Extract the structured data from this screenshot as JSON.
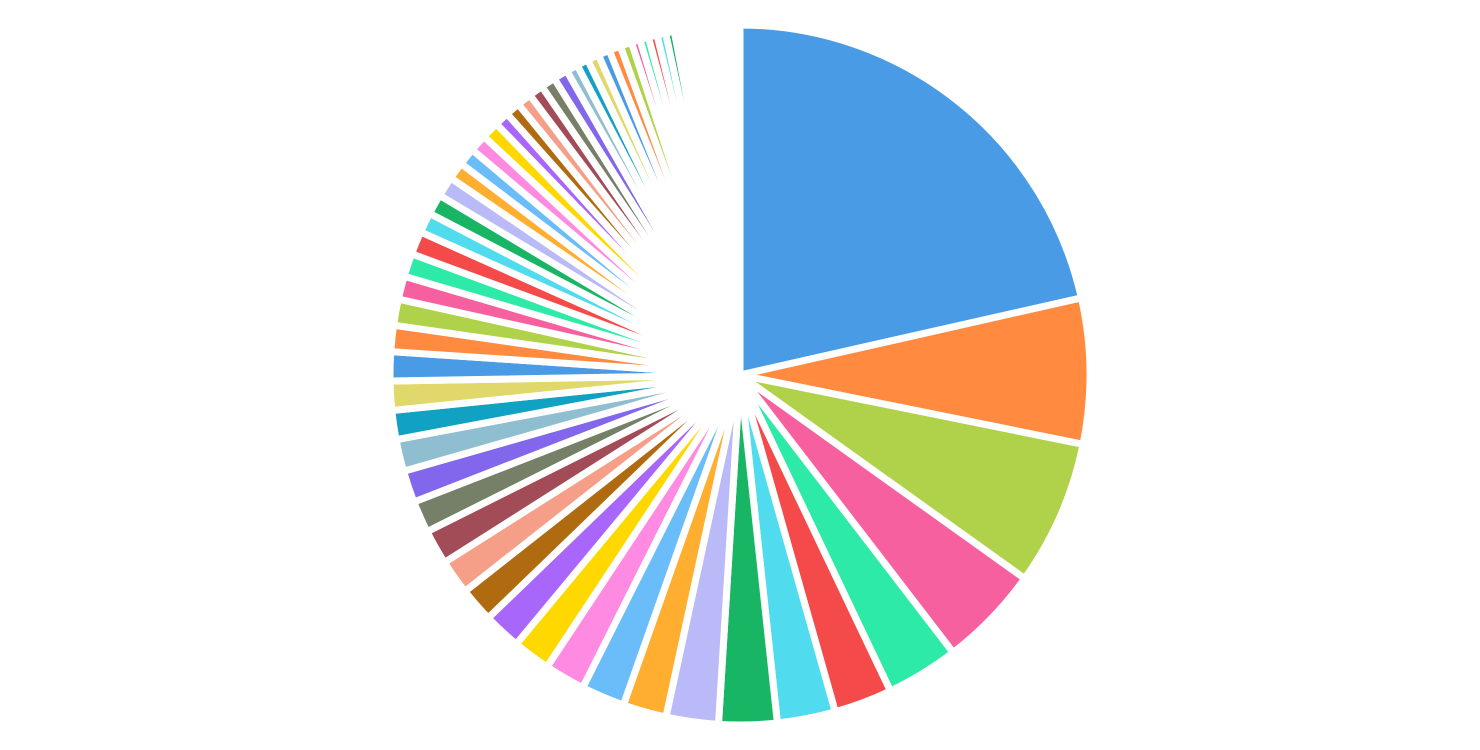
{
  "chart_data": {
    "type": "pie",
    "title": "",
    "legend": "none",
    "start": "12 o'clock",
    "direction": "clockwise",
    "series": [
      {
        "name": "",
        "values": [
          160,
          50,
          50,
          35,
          25,
          20,
          20,
          20,
          18,
          15,
          15,
          14,
          13,
          13,
          12,
          12,
          12,
          11,
          11,
          11,
          10,
          10,
          10,
          9,
          9,
          8,
          8,
          8,
          7,
          7,
          7,
          6,
          6,
          6,
          6,
          5,
          5,
          5,
          5,
          5,
          5,
          4,
          4,
          4,
          4,
          4,
          4,
          3,
          3,
          3,
          3,
          3,
          2,
          2,
          2,
          2,
          2,
          2,
          1.5,
          1.5,
          1.5,
          1,
          1,
          1,
          0.8,
          0.6,
          0.5,
          0.4,
          0.3,
          0.3
        ]
      }
    ],
    "colors": [
      "#4a9be6",
      "#ff8a40",
      "#b0d24a",
      "#f7609f",
      "#2eeaa8",
      "#f44a4a",
      "#50dcee",
      "#18b565",
      "#babaf8",
      "#ffae30",
      "#6bbdfa",
      "#ff8ae2",
      "#ffd800",
      "#a966fa",
      "#b06a10",
      "#f59f88",
      "#a24c58",
      "#767f68",
      "#8267ec",
      "#8ebed0",
      "#11a1c2",
      "#e0d86a"
    ]
  }
}
